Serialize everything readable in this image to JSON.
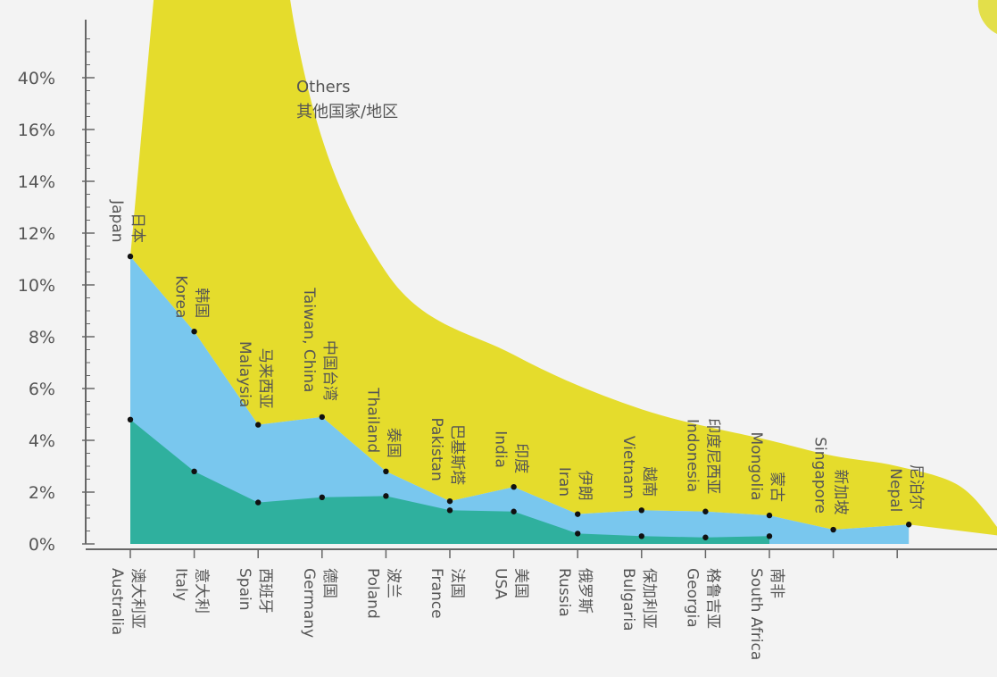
{
  "chart_data": {
    "type": "area",
    "y_ticks": [
      "0%",
      "2%",
      "4%",
      "6%",
      "8%",
      "10%",
      "12%",
      "14%",
      "16%",
      "40%"
    ],
    "others_label": [
      "Others",
      "其他国家/地区"
    ],
    "colors": {
      "bottom": "#2fb09e",
      "middle": "#79c7ee",
      "top": "#e5dc2c",
      "axis": "#666666",
      "marker": "#111111",
      "background": "#f3f3f3",
      "corner_accent": "#e3df4a"
    },
    "bottom_series": {
      "categories": [
        "澳大利亚 Australia",
        "意大利 Italy",
        "西班牙 Spain",
        "德国 Germany",
        "波兰 Poland",
        "法国 France",
        "美国 USA",
        "俄罗斯 Russia",
        "保加利亚 Bulgaria",
        "格鲁吉亚 Georgia",
        "南非 South Africa"
      ],
      "labels": [
        {
          "cn": "澳大利亚",
          "en": "Australia"
        },
        {
          "cn": "意大利",
          "en": "Italy"
        },
        {
          "cn": "西班牙",
          "en": "Spain"
        },
        {
          "cn": "德国",
          "en": "Germany"
        },
        {
          "cn": "波兰",
          "en": "Poland"
        },
        {
          "cn": "法国",
          "en": "France"
        },
        {
          "cn": "美国",
          "en": "USA"
        },
        {
          "cn": "俄罗斯",
          "en": "Russia"
        },
        {
          "cn": "保加利亚",
          "en": "Bulgaria"
        },
        {
          "cn": "格鲁吉亚",
          "en": "Georgia"
        },
        {
          "cn": "南非",
          "en": "South Africa"
        }
      ],
      "values": [
        4.8,
        2.8,
        1.6,
        1.8,
        1.85,
        1.3,
        1.25,
        0.4,
        0.3,
        0.25,
        0.3
      ]
    },
    "middle_series": {
      "labels": [
        {
          "cn": "日本",
          "en": "Japan"
        },
        {
          "cn": "韩国",
          "en": "Korea"
        },
        {
          "cn": "马来西亚",
          "en": "Malaysia"
        },
        {
          "cn": "中国台湾",
          "en": "Taiwan, China"
        },
        {
          "cn": "泰国",
          "en": "Thailand"
        },
        {
          "cn": "巴基斯塔",
          "en": "Pakistan"
        },
        {
          "cn": "印度",
          "en": "India"
        },
        {
          "cn": "伊朗",
          "en": "Iran"
        },
        {
          "cn": "越南",
          "en": "Vietnam"
        },
        {
          "cn": "印度尼西亚",
          "en": "Indonesia"
        },
        {
          "cn": "蒙古",
          "en": "Mongolia"
        },
        {
          "cn": "新加坡",
          "en": "Singapore"
        },
        {
          "cn": "尼泊尔",
          "en": "Nepal"
        }
      ],
      "values": [
        11.1,
        8.2,
        4.6,
        4.9,
        2.8,
        1.65,
        2.2,
        1.15,
        1.3,
        1.25,
        1.1,
        0.55,
        0.75
      ]
    },
    "others_envelope": [
      11.1,
      30,
      36,
      40,
      20,
      10.5,
      7.3,
      5.2,
      4.0,
      3.4,
      3.0,
      2.2,
      0.3
    ]
  }
}
